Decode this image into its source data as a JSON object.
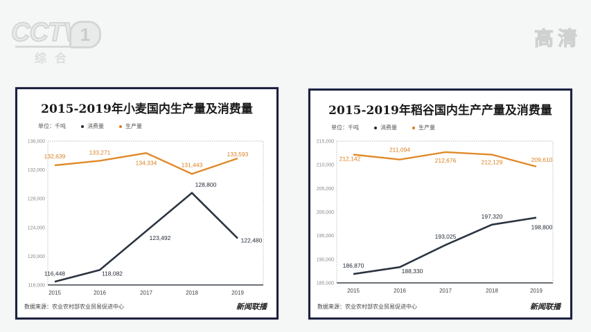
{
  "broadcast": {
    "channel_logo": "CCTV",
    "channel_number": "1",
    "channel_subtitle": "综合",
    "quality_badge": "高清"
  },
  "chart_data": [
    {
      "type": "line",
      "title": "2015-2019年小麦国内生产量及消费量",
      "unit_label": "单位：千吨",
      "legend": [
        {
          "name": "消费量",
          "color": "#1f2a38"
        },
        {
          "name": "生产量",
          "color": "#e07b1a"
        }
      ],
      "categories": [
        "2015",
        "2016",
        "2017",
        "2018",
        "2019"
      ],
      "series": [
        {
          "name": "消费量",
          "color": "#2b3440",
          "values": [
            116448,
            118082,
            123492,
            128800,
            122480
          ],
          "labels": [
            "116,448",
            "118,082",
            "123,492",
            "128,800",
            "122,480"
          ]
        },
        {
          "name": "生产量",
          "color": "#e08a2a",
          "values": [
            132639,
            133271,
            134334,
            131443,
            133593
          ],
          "labels": [
            "132,639",
            "133,271",
            "134,334",
            "131,443",
            "133,593"
          ]
        }
      ],
      "yticks": [
        "116,000",
        "120,000",
        "124,000",
        "128,000",
        "132,000",
        "136,000"
      ],
      "ylim": [
        116000,
        136000
      ],
      "xlabel": "",
      "ylabel": "",
      "source": "数据来源：农业农村部农业贸易促进中心",
      "signature": "新闻联播"
    },
    {
      "type": "line",
      "title": "2015-2019年稻谷国内生产产量及消费量",
      "unit_label": "单位：千吨",
      "legend": [
        {
          "name": "消费量",
          "color": "#1f2a38"
        },
        {
          "name": "生产量",
          "color": "#e07b1a"
        }
      ],
      "categories": [
        "2015",
        "2016",
        "2017",
        "2018",
        "2019"
      ],
      "series": [
        {
          "name": "消费量",
          "color": "#2b3440",
          "values": [
            186870,
            188330,
            193025,
            197320,
            198800
          ],
          "labels": [
            "186,870",
            "188,330",
            "193,025",
            "197,320",
            "198,800"
          ]
        },
        {
          "name": "生产量",
          "color": "#e08a2a",
          "values": [
            212142,
            211094,
            212676,
            212129,
            209610
          ],
          "labels": [
            "212,142",
            "211,094",
            "212,676",
            "212,129",
            "209,610"
          ]
        }
      ],
      "yticks": [
        "185,000",
        "190,000",
        "195,000",
        "200,000",
        "205,000",
        "210,000",
        "215,000"
      ],
      "ylim": [
        185000,
        215000
      ],
      "xlabel": "",
      "ylabel": "",
      "source": "数据来源：农业农村部农业贸易促进中心",
      "signature": "新闻联播"
    }
  ]
}
